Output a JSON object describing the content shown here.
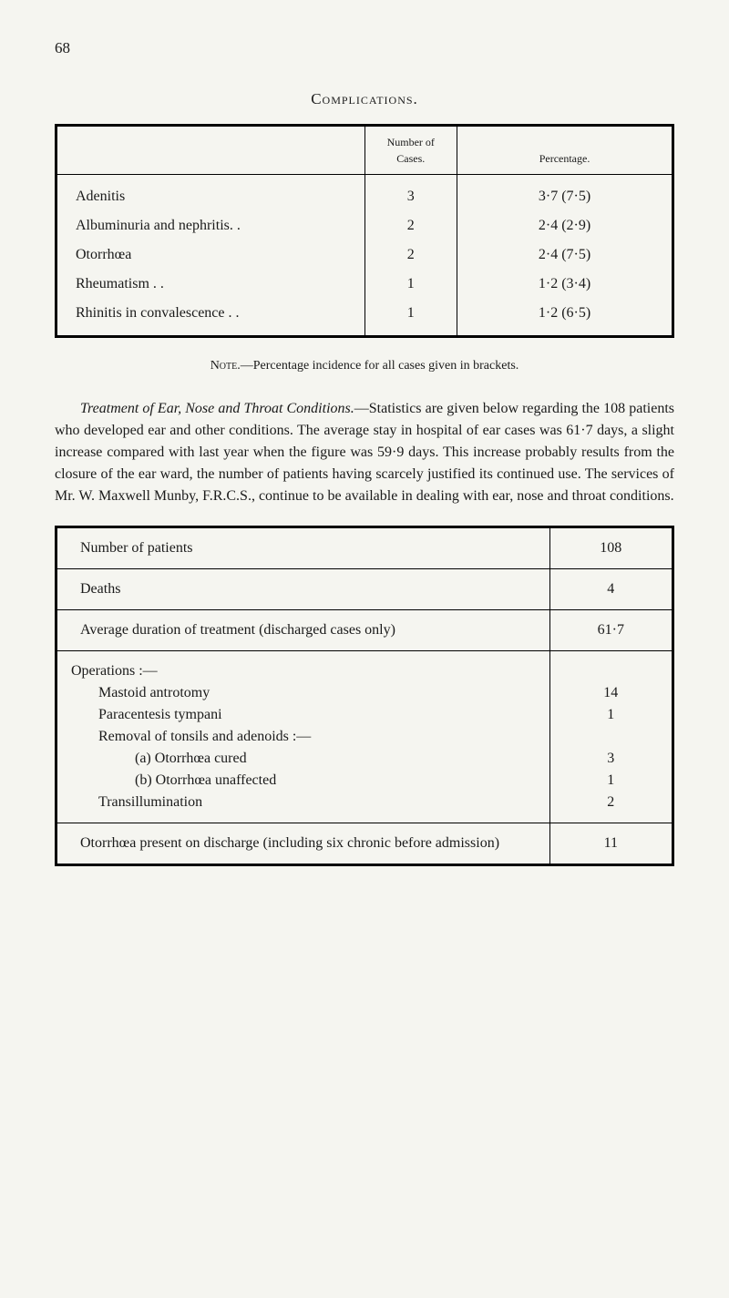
{
  "page_number": "68",
  "complications": {
    "title": "Complications.",
    "headers": [
      "",
      "Number of Cases.",
      "Percentage."
    ],
    "rows": [
      {
        "condition": "Adenitis",
        "cases": "3",
        "percentage": "3·7   (7·5)"
      },
      {
        "condition": "Albuminuria and nephritis. .",
        "cases": "2",
        "percentage": "2·4   (2·9)"
      },
      {
        "condition": "Otorrhœa",
        "cases": "2",
        "percentage": "2·4   (7·5)"
      },
      {
        "condition": "Rheumatism . .",
        "cases": "1",
        "percentage": "1·2   (3·4)"
      },
      {
        "condition": "Rhinitis in convalescence . .",
        "cases": "1",
        "percentage": "1·2   (6·5)"
      }
    ]
  },
  "note": {
    "label": "Note.",
    "text": "—Percentage incidence for all cases given in brackets."
  },
  "paragraph": {
    "lead_italic": "Treatment of Ear, Nose and Throat Conditions.",
    "body": "—Statistics are given below regarding the 108 patients who developed ear and other conditions. The average stay in hospital of ear cases was 61·7 days, a slight increase compared with last year when the figure was 59·9 days. This increase probably results from the closure of the ear ward, the number of patients having scarcely justified its continued use. The services of Mr. W. Maxwell Munby, F.R.C.S., continue to be available in dealing with ear, nose and throat conditions."
  },
  "treatment": {
    "rows": [
      {
        "label": "Number of patients",
        "value": "108"
      },
      {
        "label": "Deaths",
        "value": "4"
      },
      {
        "label": "Average duration of treatment (discharged cases only)",
        "value": "61·7"
      }
    ],
    "operations": {
      "header": "Operations :—",
      "items": [
        {
          "label": "Mastoid antrotomy",
          "value": "14",
          "indent": 1
        },
        {
          "label": "Paracentesis tympani",
          "value": "1",
          "indent": 1
        },
        {
          "label": "Removal of tonsils and adenoids :—",
          "value": "",
          "indent": 1
        },
        {
          "label": "(a) Otorrhœa cured",
          "value": "3",
          "indent": 2
        },
        {
          "label": "(b) Otorrhœa unaffected",
          "value": "1",
          "indent": 2
        },
        {
          "label": "Transillumination",
          "value": "2",
          "indent": 1
        }
      ]
    },
    "final_row": {
      "label": "Otorrhœa present on discharge (including six chronic before admission)",
      "value": "11"
    }
  }
}
